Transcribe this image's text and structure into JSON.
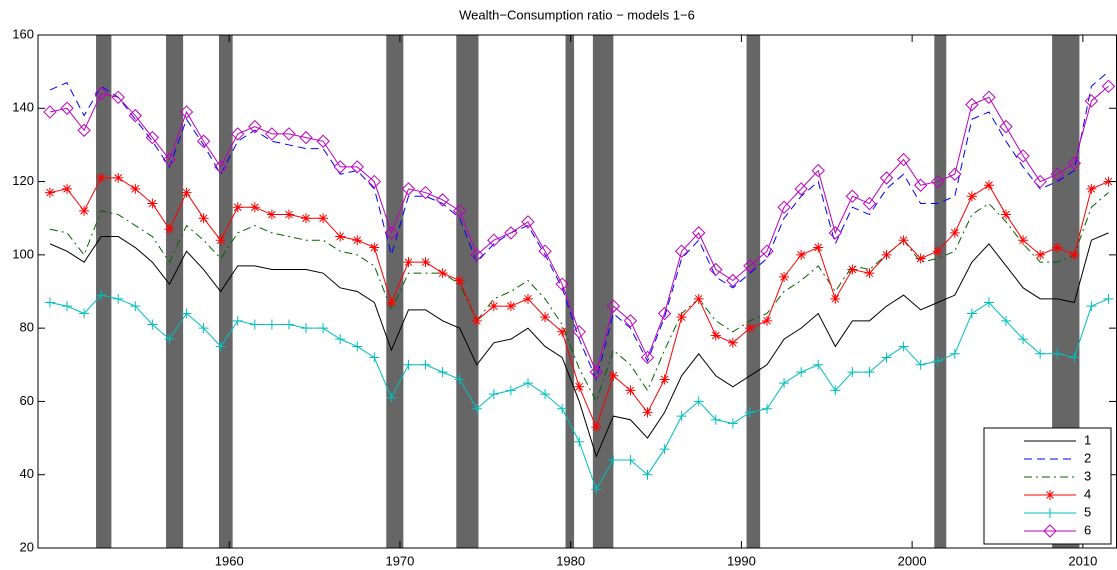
{
  "chart_data": {
    "type": "line",
    "title": "Wealth−Consumption ratio − models 1−6",
    "x": [
      1949.5,
      1950.5,
      1951.5,
      1952.5,
      1953.5,
      1954.5,
      1955.5,
      1956.5,
      1957.5,
      1958.5,
      1959.5,
      1960.5,
      1961.5,
      1962.5,
      1963.5,
      1964.5,
      1965.5,
      1966.5,
      1967.5,
      1968.5,
      1969.5,
      1970.5,
      1971.5,
      1972.5,
      1973.5,
      1974.5,
      1975.5,
      1976.5,
      1977.5,
      1978.5,
      1979.5,
      1980.5,
      1981.5,
      1982.5,
      1983.5,
      1984.5,
      1985.5,
      1986.5,
      1987.5,
      1988.5,
      1989.5,
      1990.5,
      1991.5,
      1992.5,
      1993.5,
      1994.5,
      1995.5,
      1996.5,
      1997.5,
      1998.5,
      1999.5,
      2000.5,
      2001.5,
      2002.5,
      2003.5,
      2004.5,
      2005.5,
      2006.5,
      2007.5,
      2008.5,
      2009.5,
      2010.5,
      2011.5
    ],
    "series": [
      {
        "name": "1",
        "color": "#000000",
        "dash": "solid",
        "marker": "none",
        "values": [
          103,
          101,
          98,
          105,
          105,
          102,
          98,
          92,
          101,
          96,
          90,
          97,
          97,
          96,
          96,
          96,
          95,
          91,
          90,
          87,
          74,
          85,
          85,
          82,
          80,
          70,
          76,
          77,
          80,
          75,
          72,
          60,
          45,
          56,
          55,
          50,
          57,
          67,
          73,
          67,
          64,
          67,
          70,
          77,
          80,
          84,
          75,
          82,
          82,
          86,
          89,
          85,
          87,
          89,
          98,
          103,
          97,
          91,
          88,
          88,
          87,
          104,
          106
        ]
      },
      {
        "name": "2",
        "color": "#0000ff",
        "dash": "dashed",
        "marker": "none",
        "values": [
          145,
          147,
          138,
          146,
          143,
          137,
          131,
          124,
          137,
          130,
          122,
          131,
          134,
          131,
          130,
          129,
          129,
          122,
          123,
          118,
          100,
          116,
          116,
          114,
          110,
          98,
          103,
          106,
          108,
          100,
          91,
          77,
          66,
          84,
          80,
          71,
          83,
          99,
          104,
          94,
          91,
          95,
          99,
          110,
          116,
          120,
          103,
          113,
          111,
          118,
          122,
          114,
          114,
          116,
          137,
          139,
          131,
          124,
          118,
          120,
          123,
          146,
          150
        ]
      },
      {
        "name": "3",
        "color": "#006400",
        "dash": "dashdot",
        "marker": "none",
        "values": [
          107,
          106,
          100,
          112,
          111,
          108,
          105,
          98,
          108,
          104,
          99,
          106,
          108,
          106,
          105,
          104,
          104,
          101,
          100,
          97,
          85,
          95,
          95,
          95,
          92,
          82,
          88,
          90,
          93,
          88,
          81,
          69,
          60,
          74,
          70,
          63,
          74,
          84,
          88,
          82,
          79,
          82,
          84,
          90,
          93,
          97,
          90,
          97,
          96,
          100,
          104,
          98,
          99,
          101,
          111,
          114,
          109,
          103,
          98,
          98,
          100,
          113,
          117
        ]
      },
      {
        "name": "4",
        "color": "#ff0000",
        "dash": "solid",
        "marker": "star",
        "values": [
          117,
          118,
          112,
          121,
          121,
          118,
          114,
          107,
          117,
          110,
          104,
          113,
          113,
          111,
          111,
          110,
          110,
          105,
          104,
          102,
          87,
          98,
          98,
          95,
          93,
          82,
          86,
          86,
          88,
          83,
          79,
          64,
          53,
          67,
          63,
          57,
          66,
          83,
          88,
          78,
          76,
          80,
          82,
          94,
          100,
          102,
          88,
          96,
          95,
          100,
          104,
          99,
          101,
          106,
          116,
          119,
          111,
          104,
          100,
          102,
          100,
          118,
          120
        ]
      },
      {
        "name": "5",
        "color": "#00bfbf",
        "dash": "solid",
        "marker": "plus",
        "values": [
          87,
          86,
          84,
          89,
          88,
          86,
          81,
          77,
          84,
          80,
          75,
          82,
          81,
          81,
          81,
          80,
          80,
          77,
          75,
          72,
          61,
          70,
          70,
          68,
          66,
          58,
          62,
          63,
          65,
          62,
          58,
          49,
          36,
          44,
          44,
          40,
          47,
          56,
          60,
          55,
          54,
          57,
          58,
          65,
          68,
          70,
          63,
          68,
          68,
          72,
          75,
          70,
          71,
          73,
          84,
          87,
          82,
          77,
          73,
          73,
          72,
          86,
          88
        ]
      },
      {
        "name": "6",
        "color": "#bf00bf",
        "dash": "solid",
        "marker": "diamond",
        "values": [
          139,
          140,
          134,
          144,
          143,
          138,
          132,
          126,
          139,
          131,
          124,
          133,
          135,
          133,
          133,
          132,
          131,
          124,
          124,
          120,
          106,
          118,
          117,
          115,
          112,
          100,
          104,
          106,
          109,
          101,
          92,
          79,
          68,
          86,
          82,
          72,
          84,
          101,
          106,
          96,
          93,
          97,
          101,
          113,
          118,
          123,
          106,
          116,
          114,
          121,
          126,
          119,
          120,
          122,
          141,
          143,
          135,
          127,
          120,
          122,
          125,
          142,
          146
        ]
      }
    ],
    "shaded_regions": [
      [
        1952.2,
        1953.1
      ],
      [
        1956.3,
        1957.3
      ],
      [
        1959.4,
        1960.2
      ],
      [
        1969.2,
        1970.2
      ],
      [
        1973.3,
        1974.6
      ],
      [
        1979.7,
        1980.2
      ],
      [
        1981.3,
        1982.5
      ],
      [
        1990.3,
        1991.1
      ],
      [
        2001.3,
        2002.0
      ],
      [
        2008.2,
        2009.8
      ]
    ],
    "shade_color": "#666666",
    "xlim": [
      1948.8,
      2012.0
    ],
    "xticks": [
      1960,
      1970,
      1980,
      1990,
      2000,
      2010
    ],
    "ylim": [
      20,
      160
    ],
    "yticks": [
      20,
      40,
      60,
      80,
      100,
      120,
      140,
      160
    ],
    "grid": false,
    "legend": "lower right"
  }
}
